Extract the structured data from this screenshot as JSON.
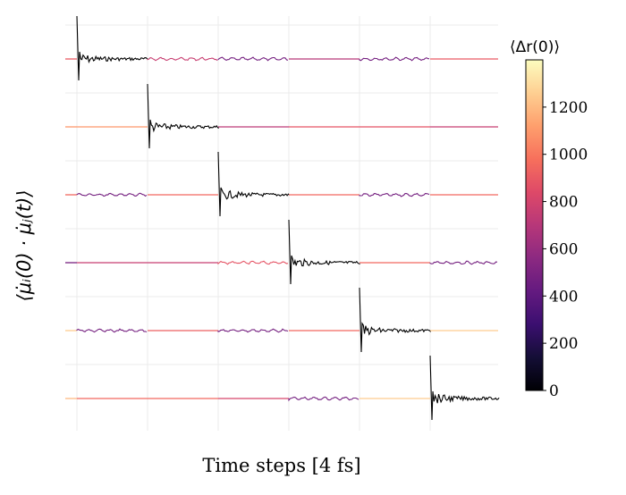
{
  "chart_data": {
    "type": "line",
    "title": "",
    "xlabel": "Time steps [4 fs]",
    "ylabel": "⟨μ̇ᵢ(0) · μ̇ⱼ(t)⟩",
    "grid": true,
    "n_rows": 6,
    "n_segments": 6,
    "segment_description": "Each row i is a stack of correlation traces; segment j colored by ⟨Δr(0)⟩; diagonal (i = j) autocorrelation drawn in black with spike",
    "segment_values": [
      [
        null,
        760,
        480,
        700,
        480,
        900
      ],
      [
        1100,
        null,
        720,
        880,
        870,
        760
      ],
      [
        480,
        950,
        null,
        950,
        480,
        950
      ],
      [
        760,
        760,
        880,
        null,
        950,
        480
      ],
      [
        480,
        920,
        480,
        950,
        null,
        1250
      ],
      [
        950,
        950,
        820,
        480,
        1250,
        null
      ]
    ],
    "wiggly": [
      [
        false,
        true,
        true,
        false,
        true,
        false
      ],
      [
        false,
        true,
        false,
        false,
        false,
        false
      ],
      [
        true,
        false,
        false,
        false,
        true,
        false
      ],
      [
        false,
        false,
        true,
        false,
        false,
        true
      ],
      [
        true,
        false,
        true,
        false,
        false,
        false
      ],
      [
        false,
        false,
        false,
        true,
        false,
        false
      ]
    ],
    "colorbar": {
      "label": "⟨Δr(0)⟩",
      "cmap": "magma",
      "vmin": 0,
      "vmax": 1400,
      "ticks": [
        "0",
        "200",
        "400",
        "600",
        "800",
        "1000",
        "1200"
      ],
      "tick_values": [
        0,
        200,
        400,
        600,
        800,
        1000,
        1200
      ]
    },
    "legend": "none"
  }
}
